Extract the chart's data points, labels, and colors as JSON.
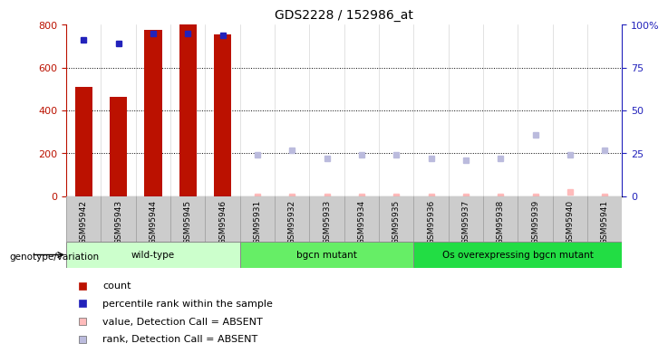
{
  "title": "GDS2228 / 152986_at",
  "samples": [
    "GSM95942",
    "GSM95943",
    "GSM95944",
    "GSM95945",
    "GSM95946",
    "GSM95931",
    "GSM95932",
    "GSM95933",
    "GSM95934",
    "GSM95935",
    "GSM95936",
    "GSM95937",
    "GSM95938",
    "GSM95939",
    "GSM95940",
    "GSM95941"
  ],
  "counts": [
    510,
    465,
    775,
    800,
    755,
    0,
    0,
    0,
    0,
    0,
    0,
    0,
    0,
    0,
    0,
    0
  ],
  "present_ranks_pct": [
    91,
    89,
    95,
    95,
    94,
    0,
    0,
    0,
    0,
    0,
    0,
    0,
    0,
    0,
    0,
    0
  ],
  "absent_values_left": [
    0,
    0,
    0,
    0,
    0,
    1,
    1,
    1,
    1,
    1,
    1,
    1,
    1,
    1,
    20,
    1
  ],
  "absent_ranks_pct": [
    0,
    0,
    0,
    0,
    0,
    24,
    27,
    22,
    24,
    24,
    22,
    21,
    22,
    36,
    24,
    27
  ],
  "groups": [
    {
      "label": "wild-type",
      "start": 0,
      "end": 5,
      "color": "#ccffcc"
    },
    {
      "label": "bgcn mutant",
      "start": 5,
      "end": 10,
      "color": "#66ee66"
    },
    {
      "label": "Os overexpressing bgcn mutant",
      "start": 10,
      "end": 16,
      "color": "#22dd44"
    }
  ],
  "ylim_left": [
    0,
    800
  ],
  "ylim_right": [
    0,
    100
  ],
  "bar_color": "#bb1100",
  "rank_color": "#2222bb",
  "absent_val_color": "#ffbbbb",
  "absent_rank_color": "#bbbbdd",
  "group_label": "genotype/variation",
  "legend_items": [
    {
      "label": "count",
      "color": "#bb1100"
    },
    {
      "label": "percentile rank within the sample",
      "color": "#2222bb"
    },
    {
      "label": "value, Detection Call = ABSENT",
      "color": "#ffbbbb"
    },
    {
      "label": "rank, Detection Call = ABSENT",
      "color": "#bbbbdd"
    }
  ]
}
